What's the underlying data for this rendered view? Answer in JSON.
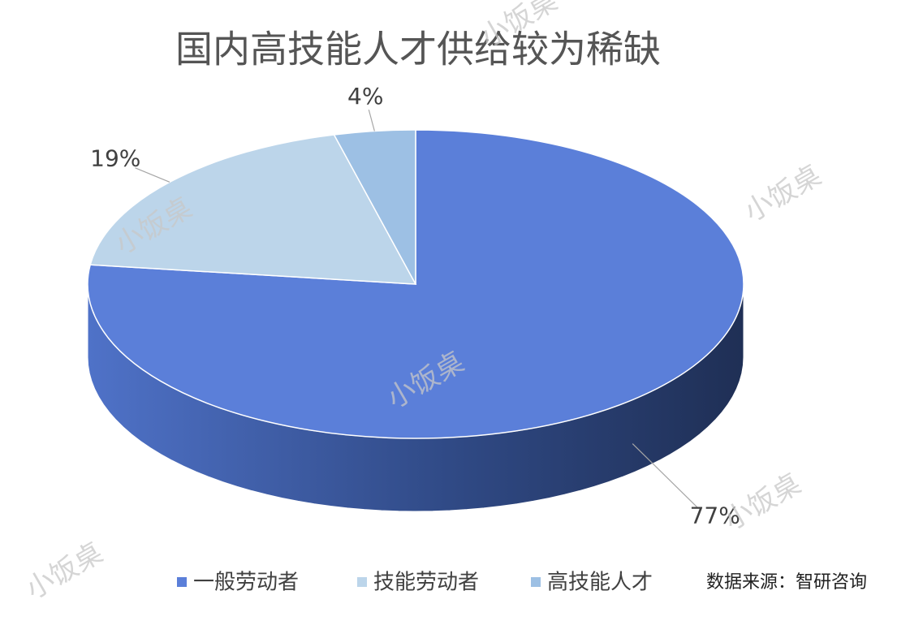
{
  "chart_data": {
    "type": "pie3d",
    "title": "国内高技能人才供给较为稀缺",
    "categories": [
      "一般劳动者",
      "技能劳动者",
      "高技能人才"
    ],
    "values": [
      77,
      19,
      4
    ],
    "value_labels": [
      "77%",
      "19%",
      "4%"
    ],
    "colors": [
      "#5b7fd9",
      "#bcd5ea",
      "#9dc0e4"
    ],
    "source": "数据来源：智研咨询",
    "watermark": "小饭桌",
    "legend": "bottom"
  }
}
